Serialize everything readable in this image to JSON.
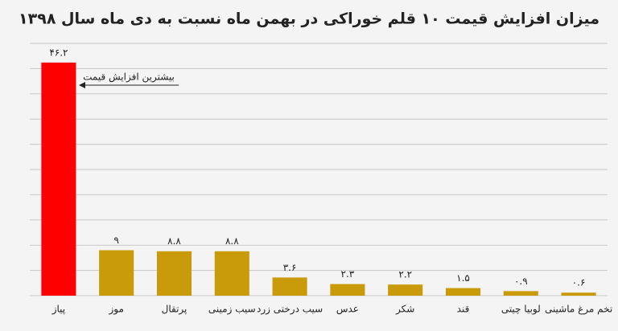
{
  "chart_data": {
    "type": "bar",
    "title": "میزان افزایش قیمت ۱۰ قلم خوراکی در بهمن ماه نسبت به دی ماه سال ۱۳۹۸",
    "categories": [
      "پیاز",
      "موز",
      "پرتقال",
      "سیب زمینی",
      "سیب درختی زرد",
      "عدس",
      "شکر",
      "قند",
      "لوبیا چیتی",
      "تخم مرغ ماشینی"
    ],
    "values": [
      46.2,
      9,
      8.8,
      8.8,
      3.6,
      2.3,
      2.2,
      1.5,
      0.9,
      0.6
    ],
    "value_labels": [
      "۴۶.۲",
      "۹",
      "۸.۸",
      "۸.۸",
      "۳.۶",
      "۲.۳",
      "۲.۲",
      "۱.۵",
      "۰.۹",
      "۰.۶"
    ],
    "colors": [
      "#ff0000",
      "#c99a0a",
      "#c99a0a",
      "#c99a0a",
      "#c99a0a",
      "#c99a0a",
      "#c99a0a",
      "#c99a0a",
      "#c99a0a",
      "#c99a0a"
    ],
    "annotation": "بیشترین افزایش قیمت",
    "ylim": [
      0,
      50
    ],
    "yticks": [
      0,
      5,
      10,
      15,
      20,
      25,
      30,
      35,
      40,
      45,
      50
    ],
    "grid": true
  }
}
